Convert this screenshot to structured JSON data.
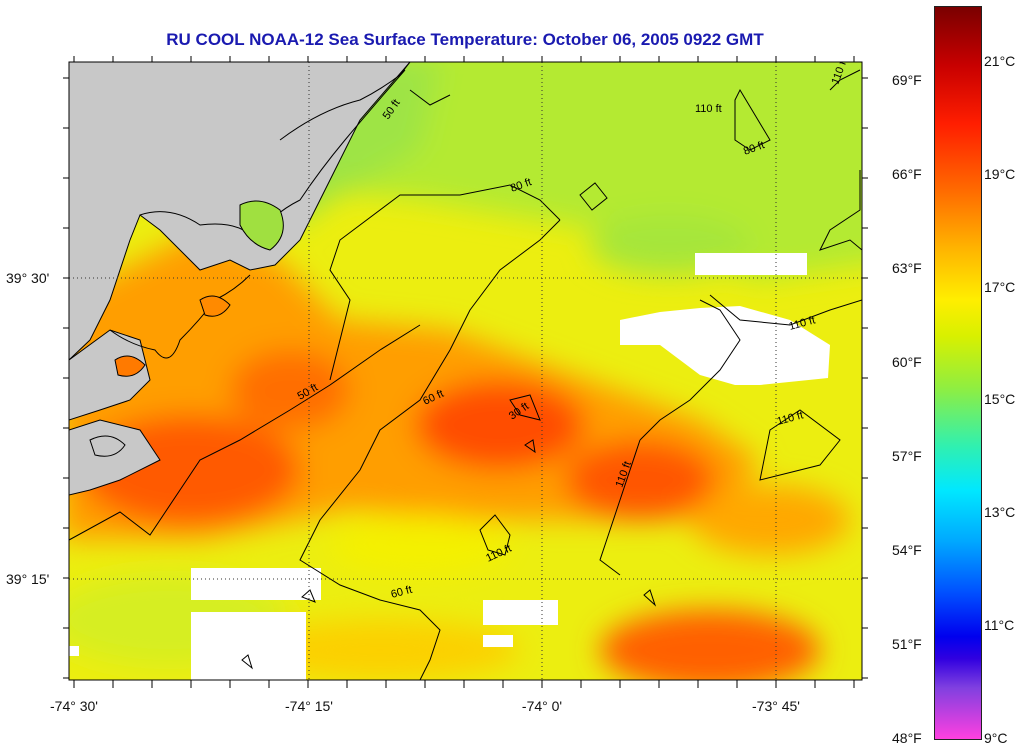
{
  "title": "RU COOL  NOAA-12  Sea Surface Temperature:  October 06, 2005 0922 GMT",
  "map": {
    "longitude_labels": [
      "-74° 30'",
      "-74° 15'",
      "-74° 0'",
      "-73° 45'"
    ],
    "latitude_labels": [
      "39° 30'",
      "39° 15'"
    ],
    "depth_contour_labels": [
      "30 ft",
      "50 ft",
      "60 ft",
      "80 ft",
      "110 ft"
    ],
    "colors": {
      "land": "#c8c8c8",
      "cloud_no_data": "#ffffff",
      "grid": "#404040",
      "contour": "#000000"
    }
  },
  "scale": {
    "fahrenheit_labels": [
      "69°F",
      "66°F",
      "63°F",
      "60°F",
      "57°F",
      "54°F",
      "51°F",
      "48°F"
    ],
    "celsius_labels": [
      "21°C",
      "19°C",
      "17°C",
      "15°C",
      "13°C",
      "11°C",
      "9°C"
    ],
    "min_celsius": 9,
    "max_celsius": 22
  }
}
